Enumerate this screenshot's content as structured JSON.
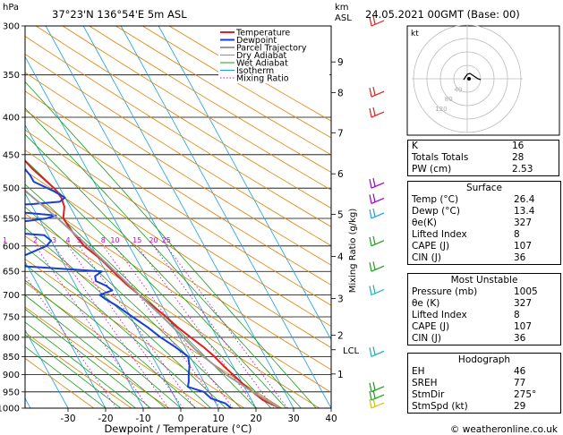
{
  "header": {
    "location": "37°23'N  136°54'E  5m  ASL",
    "datetime": "24.05.2021  00GMT  (Base: 00)",
    "hpa_label": "hPa",
    "km_label": "km",
    "asl_label": "ASL",
    "footer": "© weatheronline.co.uk"
  },
  "chart_data": {
    "type": "line",
    "title": "",
    "xlabel": "Dewpoint / Temperature (°C)",
    "ylabel": "",
    "right_axis_label": "Mixing Ratio (g/kg)",
    "xlim": [
      -40,
      40
    ],
    "ylim": [
      1000,
      300
    ],
    "y_scale": "log",
    "pressure_ticks": [
      300,
      350,
      400,
      450,
      500,
      550,
      600,
      650,
      700,
      750,
      800,
      850,
      900,
      950,
      1000
    ],
    "temp_ticks": [
      -30,
      -20,
      -10,
      0,
      10,
      20,
      30,
      40
    ],
    "km_ticks": [
      {
        "label": "9",
        "p": 336
      },
      {
        "label": "8",
        "p": 370
      },
      {
        "label": "7",
        "p": 420
      },
      {
        "label": "6",
        "p": 478
      },
      {
        "label": "5",
        "p": 543
      },
      {
        "label": "4",
        "p": 620
      },
      {
        "label": "3",
        "p": 708
      },
      {
        "label": "2",
        "p": 795
      },
      {
        "label": "1",
        "p": 898
      }
    ],
    "lcl": {
      "label": "LCL",
      "p": 832
    },
    "mixing_ratio_labels": [
      "1",
      "2",
      "3",
      "4",
      "5",
      "8",
      "10",
      "15",
      "20",
      "25"
    ],
    "mixing_ratio_values": [
      1,
      2,
      3,
      4,
      5,
      8,
      10,
      15,
      20,
      25
    ],
    "legend": [
      "Temperature",
      "Dewpoint",
      "Parcel Trajectory",
      "Dry Adiabat",
      "Wet Adiabat",
      "Isotherm",
      "Mixing Ratio"
    ],
    "legend_placement": "top-right of plot",
    "series": [
      {
        "name": "Temperature",
        "color": "#e02020",
        "points": [
          [
            1000,
            26.4
          ],
          [
            975,
            23
          ],
          [
            950,
            21.5
          ],
          [
            925,
            20
          ],
          [
            900,
            18.8
          ],
          [
            875,
            17.5
          ],
          [
            850,
            16.5
          ],
          [
            825,
            15
          ],
          [
            800,
            13
          ],
          [
            775,
            11
          ],
          [
            750,
            9.5
          ],
          [
            725,
            7.5
          ],
          [
            700,
            5.5
          ],
          [
            675,
            3.5
          ],
          [
            650,
            2
          ],
          [
            625,
            0.5
          ],
          [
            600,
            -2
          ],
          [
            575,
            -3
          ],
          [
            550,
            -3.5
          ],
          [
            530,
            -1.5
          ],
          [
            515,
            -1
          ],
          [
            500,
            -1.5
          ],
          [
            485,
            -3
          ],
          [
            470,
            -4.5
          ],
          [
            455,
            -5.5
          ],
          [
            440,
            -7
          ],
          [
            420,
            -9.5
          ],
          [
            400,
            -12
          ],
          [
            380,
            -15
          ],
          [
            360,
            -17.5
          ],
          [
            340,
            -20.5
          ],
          [
            320,
            -24
          ],
          [
            300,
            -27
          ]
        ]
      },
      {
        "name": "Dewpoint",
        "color": "#1a3fd6",
        "points": [
          [
            1000,
            13.4
          ],
          [
            985,
            12.5
          ],
          [
            970,
            9.5
          ],
          [
            950,
            8.5
          ],
          [
            935,
            5
          ],
          [
            920,
            6
          ],
          [
            900,
            7
          ],
          [
            875,
            8.5
          ],
          [
            850,
            9.5
          ],
          [
            825,
            7.5
          ],
          [
            800,
            5
          ],
          [
            775,
            3
          ],
          [
            750,
            0.5
          ],
          [
            725,
            -2
          ],
          [
            710,
            -4
          ],
          [
            700,
            -5
          ],
          [
            690,
            -1
          ],
          [
            680,
            -2
          ],
          [
            670,
            -4
          ],
          [
            660,
            -3.5
          ],
          [
            650,
            -1
          ],
          [
            640,
            -20
          ],
          [
            630,
            -30
          ],
          [
            620,
            -20
          ],
          [
            600,
            -12
          ],
          [
            590,
            -10
          ],
          [
            580,
            -11
          ],
          [
            575,
            -20
          ],
          [
            570,
            -30
          ],
          [
            560,
            -20
          ],
          [
            550,
            -8
          ],
          [
            545,
            -5
          ],
          [
            540,
            -13
          ],
          [
            537,
            -20
          ],
          [
            533,
            -30
          ],
          [
            530,
            -40
          ],
          [
            528,
            -20
          ],
          [
            526,
            -10
          ],
          [
            522,
            -2
          ],
          [
            515,
            0
          ],
          [
            505,
            -2
          ],
          [
            490,
            -6
          ],
          [
            480,
            -6
          ],
          [
            470,
            -6.5
          ],
          [
            455,
            -7
          ],
          [
            440,
            -7.5
          ],
          [
            420,
            -9.5
          ],
          [
            400,
            -12
          ],
          [
            380,
            -14
          ],
          [
            360,
            -16
          ],
          [
            340,
            -19
          ],
          [
            320,
            -22
          ],
          [
            310,
            -25
          ],
          [
            300,
            -28
          ]
        ]
      },
      {
        "name": "Parcel Trajectory",
        "color": "#999999",
        "points": [
          [
            1000,
            26.4
          ],
          [
            950,
            21.5
          ],
          [
            900,
            17
          ],
          [
            850,
            13.6
          ],
          [
            832,
            12.5
          ],
          [
            800,
            11
          ],
          [
            750,
            8.5
          ],
          [
            700,
            5.5
          ],
          [
            650,
            2.5
          ],
          [
            600,
            -1
          ],
          [
            550,
            -5
          ],
          [
            500,
            -10
          ],
          [
            450,
            -16
          ],
          [
            400,
            -22.5
          ],
          [
            350,
            -30
          ],
          [
            300,
            -39
          ]
        ]
      }
    ]
  },
  "indices": [
    {
      "label": "K",
      "value": "16"
    },
    {
      "label": "Totals Totals",
      "value": "28"
    },
    {
      "label": "PW (cm)",
      "value": "2.53"
    }
  ],
  "surface": {
    "title": "Surface",
    "rows": [
      {
        "label": "Temp (°C)",
        "value": "26.4"
      },
      {
        "label": "Dewp (°C)",
        "value": "13.4"
      },
      {
        "label": "θe(K)",
        "value": "327"
      },
      {
        "label": "Lifted Index",
        "value": "8"
      },
      {
        "label": "CAPE (J)",
        "value": "107"
      },
      {
        "label": "CIN (J)",
        "value": "36"
      }
    ]
  },
  "most_unstable": {
    "title": "Most Unstable",
    "rows": [
      {
        "label": "Pressure (mb)",
        "value": "1005"
      },
      {
        "label": "θe (K)",
        "value": "327"
      },
      {
        "label": "Lifted Index",
        "value": "8"
      },
      {
        "label": "CAPE (J)",
        "value": "107"
      },
      {
        "label": "CIN (J)",
        "value": "36"
      }
    ]
  },
  "hodograph_table": {
    "title": "Hodograph",
    "rows": [
      {
        "label": "EH",
        "value": "46"
      },
      {
        "label": "SREH",
        "value": "77"
      },
      {
        "label": "StmDir",
        "value": "275°"
      },
      {
        "label": "StmSpd (kt)",
        "value": "29"
      }
    ]
  },
  "hodograph": {
    "unit_label": "kt",
    "ring_labels": [
      "40",
      "80",
      "120"
    ],
    "trace": [
      [
        -4,
        -1
      ],
      [
        -2,
        2
      ],
      [
        0,
        5
      ],
      [
        3,
        6
      ],
      [
        6,
        4
      ],
      [
        9,
        2
      ],
      [
        12,
        0
      ],
      [
        15,
        -1
      ]
    ]
  },
  "colors": {
    "temperature": "#e02020",
    "dewpoint": "#1a3fd6",
    "parcel": "#999999",
    "dry_adiabat": "#e08000",
    "wet_adiabat": "#1e9e1e",
    "isotherm": "#1aa0e0",
    "mixing_ratio": "#cc00cc"
  }
}
